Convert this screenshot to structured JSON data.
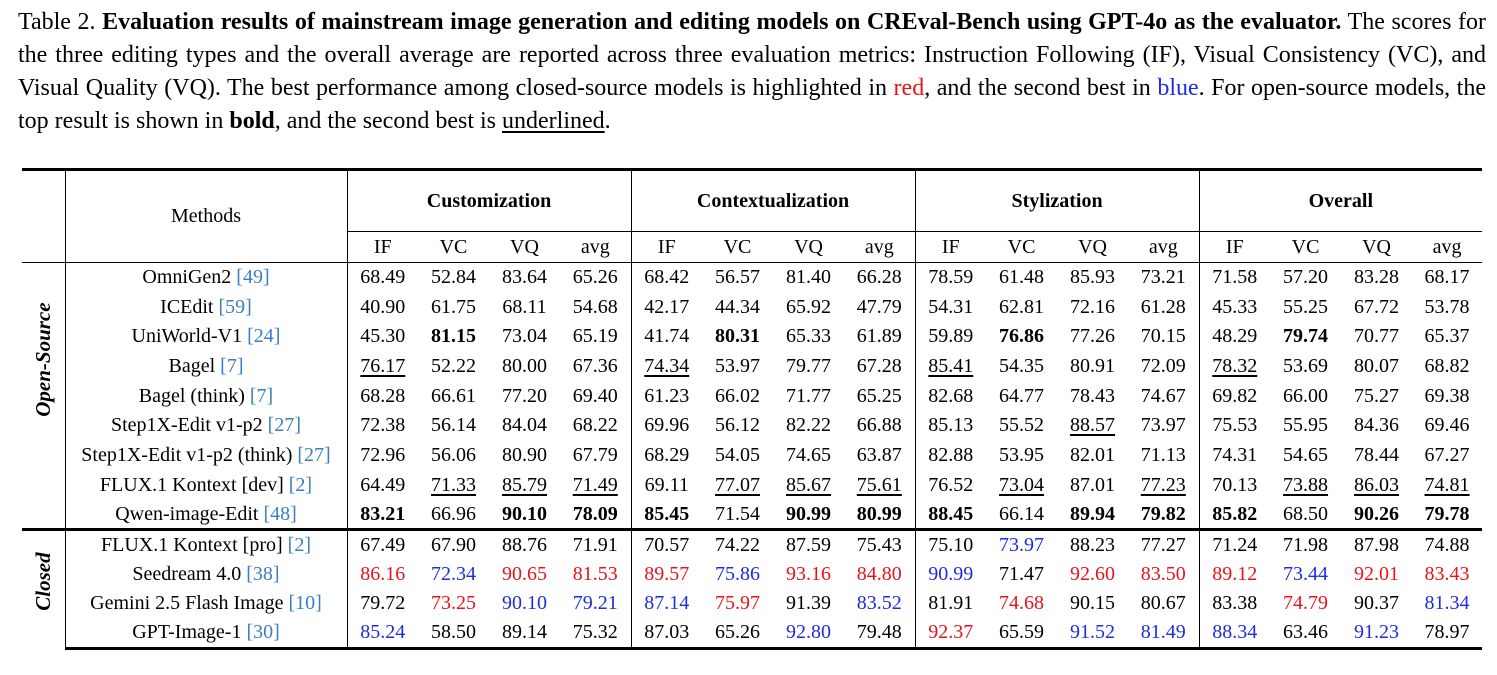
{
  "caption": {
    "label": "Table 2.",
    "title": "Evaluation results of mainstream image generation and editing models on CREval-Bench using GPT-4o as the evaluator.",
    "text1": "The scores for the three editing types and the overall average are reported across three evaluation metrics: Instruction Following (IF), Visual Consistency (VC), and Visual Quality (VQ). The best performance among closed-source models is highlighted in",
    "red_word": "red",
    "text2": ", and the second best in",
    "blue_word": "blue",
    "text3": ". For open-source models, the top result is shown in",
    "bold_word": "bold",
    "text4": ", and the second best is",
    "underlined_word": "underlined",
    "text5": "."
  },
  "table": {
    "methods_header": "Methods",
    "groups": [
      "Customization",
      "Contextualization",
      "Stylization",
      "Overall"
    ],
    "metrics": [
      "IF",
      "VC",
      "VQ",
      "avg"
    ],
    "sections": [
      {
        "label": "Open-Source",
        "rows": [
          {
            "name": "OmniGen2",
            "ref": "[49]",
            "cells": [
              {
                "v": "68.49"
              },
              {
                "v": "52.84"
              },
              {
                "v": "83.64"
              },
              {
                "v": "65.26"
              },
              {
                "v": "68.42"
              },
              {
                "v": "56.57"
              },
              {
                "v": "81.40"
              },
              {
                "v": "66.28"
              },
              {
                "v": "78.59"
              },
              {
                "v": "61.48"
              },
              {
                "v": "85.93"
              },
              {
                "v": "73.21"
              },
              {
                "v": "71.58"
              },
              {
                "v": "57.20"
              },
              {
                "v": "83.28"
              },
              {
                "v": "68.17"
              }
            ]
          },
          {
            "name": "ICEdit",
            "ref": "[59]",
            "cells": [
              {
                "v": "40.90"
              },
              {
                "v": "61.75"
              },
              {
                "v": "68.11"
              },
              {
                "v": "54.68"
              },
              {
                "v": "42.17"
              },
              {
                "v": "44.34"
              },
              {
                "v": "65.92"
              },
              {
                "v": "47.79"
              },
              {
                "v": "54.31"
              },
              {
                "v": "62.81"
              },
              {
                "v": "72.16"
              },
              {
                "v": "61.28"
              },
              {
                "v": "45.33"
              },
              {
                "v": "55.25"
              },
              {
                "v": "67.72"
              },
              {
                "v": "53.78"
              }
            ]
          },
          {
            "name": "UniWorld-V1",
            "ref": "[24]",
            "cells": [
              {
                "v": "45.30"
              },
              {
                "v": "81.15",
                "s": "b"
              },
              {
                "v": "73.04"
              },
              {
                "v": "65.19"
              },
              {
                "v": "41.74"
              },
              {
                "v": "80.31",
                "s": "b"
              },
              {
                "v": "65.33"
              },
              {
                "v": "61.89"
              },
              {
                "v": "59.89"
              },
              {
                "v": "76.86",
                "s": "b"
              },
              {
                "v": "77.26"
              },
              {
                "v": "70.15"
              },
              {
                "v": "48.29"
              },
              {
                "v": "79.74",
                "s": "b"
              },
              {
                "v": "70.77"
              },
              {
                "v": "65.37"
              }
            ]
          },
          {
            "name": "Bagel",
            "ref": "[7]",
            "cells": [
              {
                "v": "76.17",
                "s": "u"
              },
              {
                "v": "52.22"
              },
              {
                "v": "80.00"
              },
              {
                "v": "67.36"
              },
              {
                "v": "74.34",
                "s": "u"
              },
              {
                "v": "53.97"
              },
              {
                "v": "79.77"
              },
              {
                "v": "67.28"
              },
              {
                "v": "85.41",
                "s": "u"
              },
              {
                "v": "54.35"
              },
              {
                "v": "80.91"
              },
              {
                "v": "72.09"
              },
              {
                "v": "78.32",
                "s": "u"
              },
              {
                "v": "53.69"
              },
              {
                "v": "80.07"
              },
              {
                "v": "68.82"
              }
            ]
          },
          {
            "name": "Bagel (think)",
            "ref": "[7]",
            "cells": [
              {
                "v": "68.28"
              },
              {
                "v": "66.61"
              },
              {
                "v": "77.20"
              },
              {
                "v": "69.40"
              },
              {
                "v": "61.23"
              },
              {
                "v": "66.02"
              },
              {
                "v": "71.77"
              },
              {
                "v": "65.25"
              },
              {
                "v": "82.68"
              },
              {
                "v": "64.77"
              },
              {
                "v": "78.43"
              },
              {
                "v": "74.67"
              },
              {
                "v": "69.82"
              },
              {
                "v": "66.00"
              },
              {
                "v": "75.27"
              },
              {
                "v": "69.38"
              }
            ]
          },
          {
            "name": "Step1X-Edit v1-p2",
            "ref": "[27]",
            "cells": [
              {
                "v": "72.38"
              },
              {
                "v": "56.14"
              },
              {
                "v": "84.04"
              },
              {
                "v": "68.22"
              },
              {
                "v": "69.96"
              },
              {
                "v": "56.12"
              },
              {
                "v": "82.22"
              },
              {
                "v": "66.88"
              },
              {
                "v": "85.13"
              },
              {
                "v": "55.52"
              },
              {
                "v": "88.57",
                "s": "u"
              },
              {
                "v": "73.97"
              },
              {
                "v": "75.53"
              },
              {
                "v": "55.95"
              },
              {
                "v": "84.36"
              },
              {
                "v": "69.46"
              }
            ]
          },
          {
            "name": "Step1X-Edit v1-p2 (think)",
            "ref": "[27]",
            "cells": [
              {
                "v": "72.96"
              },
              {
                "v": "56.06"
              },
              {
                "v": "80.90"
              },
              {
                "v": "67.79"
              },
              {
                "v": "68.29"
              },
              {
                "v": "54.05"
              },
              {
                "v": "74.65"
              },
              {
                "v": "63.87"
              },
              {
                "v": "82.88"
              },
              {
                "v": "53.95"
              },
              {
                "v": "82.01"
              },
              {
                "v": "71.13"
              },
              {
                "v": "74.31"
              },
              {
                "v": "54.65"
              },
              {
                "v": "78.44"
              },
              {
                "v": "67.27"
              }
            ]
          },
          {
            "name": "FLUX.1 Kontext [dev]",
            "ref": "[2]",
            "cells": [
              {
                "v": "64.49"
              },
              {
                "v": "71.33",
                "s": "u"
              },
              {
                "v": "85.79",
                "s": "u"
              },
              {
                "v": "71.49",
                "s": "u"
              },
              {
                "v": "69.11"
              },
              {
                "v": "77.07",
                "s": "u"
              },
              {
                "v": "85.67",
                "s": "u"
              },
              {
                "v": "75.61",
                "s": "u"
              },
              {
                "v": "76.52"
              },
              {
                "v": "73.04",
                "s": "u"
              },
              {
                "v": "87.01"
              },
              {
                "v": "77.23",
                "s": "u"
              },
              {
                "v": "70.13"
              },
              {
                "v": "73.88",
                "s": "u"
              },
              {
                "v": "86.03",
                "s": "u"
              },
              {
                "v": "74.81",
                "s": "u"
              }
            ]
          },
          {
            "name": "Qwen-image-Edit",
            "ref": "[48]",
            "cells": [
              {
                "v": "83.21",
                "s": "b"
              },
              {
                "v": "66.96"
              },
              {
                "v": "90.10",
                "s": "b"
              },
              {
                "v": "78.09",
                "s": "b"
              },
              {
                "v": "85.45",
                "s": "b"
              },
              {
                "v": "71.54"
              },
              {
                "v": "90.99",
                "s": "b"
              },
              {
                "v": "80.99",
                "s": "b"
              },
              {
                "v": "88.45",
                "s": "b"
              },
              {
                "v": "66.14"
              },
              {
                "v": "89.94",
                "s": "b"
              },
              {
                "v": "79.82",
                "s": "b"
              },
              {
                "v": "85.82",
                "s": "b"
              },
              {
                "v": "68.50"
              },
              {
                "v": "90.26",
                "s": "b"
              },
              {
                "v": "79.78",
                "s": "b"
              }
            ]
          }
        ]
      },
      {
        "label": "Closed",
        "rows": [
          {
            "name": "FLUX.1 Kontext [pro]",
            "ref": "[2]",
            "cells": [
              {
                "v": "67.49"
              },
              {
                "v": "67.90"
              },
              {
                "v": "88.76"
              },
              {
                "v": "71.91"
              },
              {
                "v": "70.57"
              },
              {
                "v": "74.22"
              },
              {
                "v": "87.59"
              },
              {
                "v": "75.43"
              },
              {
                "v": "75.10"
              },
              {
                "v": "73.97",
                "s": "blue"
              },
              {
                "v": "88.23"
              },
              {
                "v": "77.27"
              },
              {
                "v": "71.24"
              },
              {
                "v": "71.98"
              },
              {
                "v": "87.98"
              },
              {
                "v": "74.88"
              }
            ]
          },
          {
            "name": "Seedream 4.0",
            "ref": "[38]",
            "cells": [
              {
                "v": "86.16",
                "s": "red"
              },
              {
                "v": "72.34",
                "s": "blue"
              },
              {
                "v": "90.65",
                "s": "red"
              },
              {
                "v": "81.53",
                "s": "red"
              },
              {
                "v": "89.57",
                "s": "red"
              },
              {
                "v": "75.86",
                "s": "blue"
              },
              {
                "v": "93.16",
                "s": "red"
              },
              {
                "v": "84.80",
                "s": "red"
              },
              {
                "v": "90.99",
                "s": "blue"
              },
              {
                "v": "71.47"
              },
              {
                "v": "92.60",
                "s": "red"
              },
              {
                "v": "83.50",
                "s": "red"
              },
              {
                "v": "89.12",
                "s": "red"
              },
              {
                "v": "73.44",
                "s": "blue"
              },
              {
                "v": "92.01",
                "s": "red"
              },
              {
                "v": "83.43",
                "s": "red"
              }
            ]
          },
          {
            "name": "Gemini 2.5 Flash Image",
            "ref": "[10]",
            "cells": [
              {
                "v": "79.72"
              },
              {
                "v": "73.25",
                "s": "red"
              },
              {
                "v": "90.10",
                "s": "blue"
              },
              {
                "v": "79.21",
                "s": "blue"
              },
              {
                "v": "87.14",
                "s": "blue"
              },
              {
                "v": "75.97",
                "s": "red"
              },
              {
                "v": "91.39"
              },
              {
                "v": "83.52",
                "s": "blue"
              },
              {
                "v": "81.91"
              },
              {
                "v": "74.68",
                "s": "red"
              },
              {
                "v": "90.15"
              },
              {
                "v": "80.67"
              },
              {
                "v": "83.38"
              },
              {
                "v": "74.79",
                "s": "red"
              },
              {
                "v": "90.37"
              },
              {
                "v": "81.34",
                "s": "blue"
              }
            ]
          },
          {
            "name": "GPT-Image-1",
            "ref": "[30]",
            "cells": [
              {
                "v": "85.24",
                "s": "blue"
              },
              {
                "v": "58.50"
              },
              {
                "v": "89.14"
              },
              {
                "v": "75.32"
              },
              {
                "v": "87.03"
              },
              {
                "v": "65.26"
              },
              {
                "v": "92.80",
                "s": "blue"
              },
              {
                "v": "79.48"
              },
              {
                "v": "92.37",
                "s": "red"
              },
              {
                "v": "65.59"
              },
              {
                "v": "91.52",
                "s": "blue"
              },
              {
                "v": "81.49",
                "s": "blue"
              },
              {
                "v": "88.34",
                "s": "blue"
              },
              {
                "v": "63.46"
              },
              {
                "v": "91.23",
                "s": "blue"
              },
              {
                "v": "78.97"
              }
            ]
          }
        ]
      }
    ],
    "colors": {
      "red": "#e8141b",
      "blue": "#1e2ce0",
      "link": "#3b7ec2"
    }
  }
}
